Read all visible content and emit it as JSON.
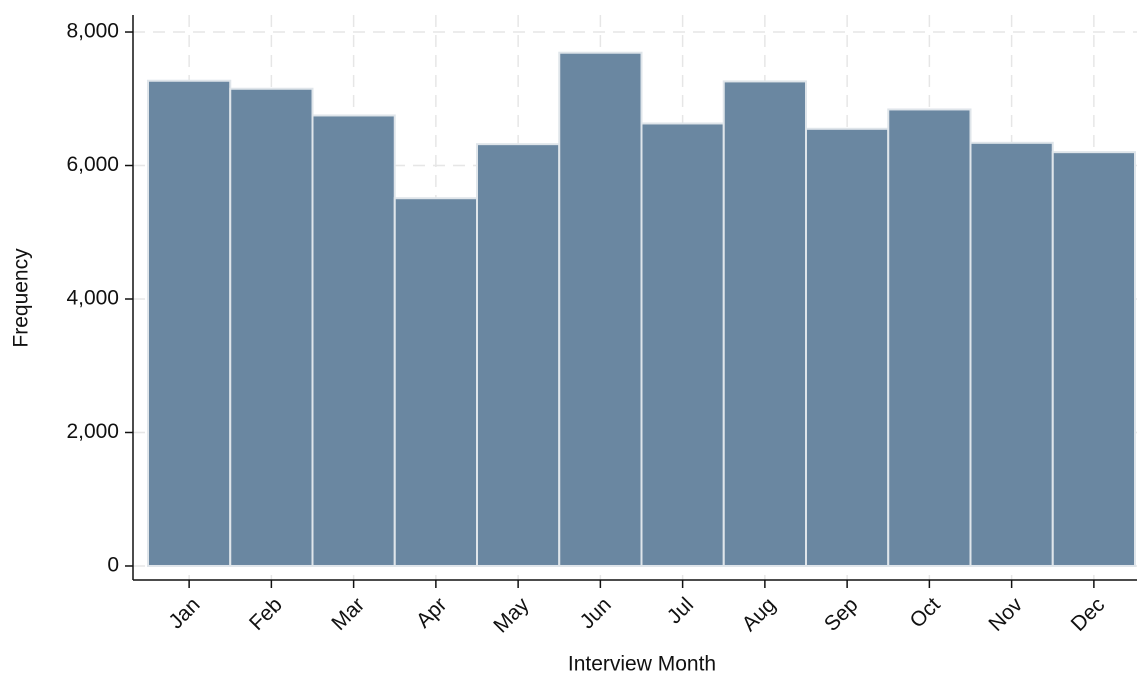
{
  "chart_data": {
    "type": "bar",
    "x_label": "Interview Month",
    "y_label": "Frequency",
    "categories": [
      "Jan",
      "Feb",
      "Mar",
      "Apr",
      "May",
      "Jun",
      "Jul",
      "Aug",
      "Sep",
      "Oct",
      "Nov",
      "Dec"
    ],
    "values": [
      7270,
      7150,
      6750,
      5510,
      6320,
      7690,
      6630,
      7260,
      6550,
      6840,
      6340,
      6200
    ],
    "color": "#6a87a1",
    "ylim": [
      -210,
      8255
    ],
    "yticks": [
      0,
      {
        "value": 2000,
        "label": "2,000"
      },
      {
        "value": 4000,
        "label": "4,000"
      },
      {
        "value": 6000,
        "label": "6,000"
      },
      {
        "value": 8000,
        "label": "8,000"
      }
    ],
    "grid": true
  }
}
